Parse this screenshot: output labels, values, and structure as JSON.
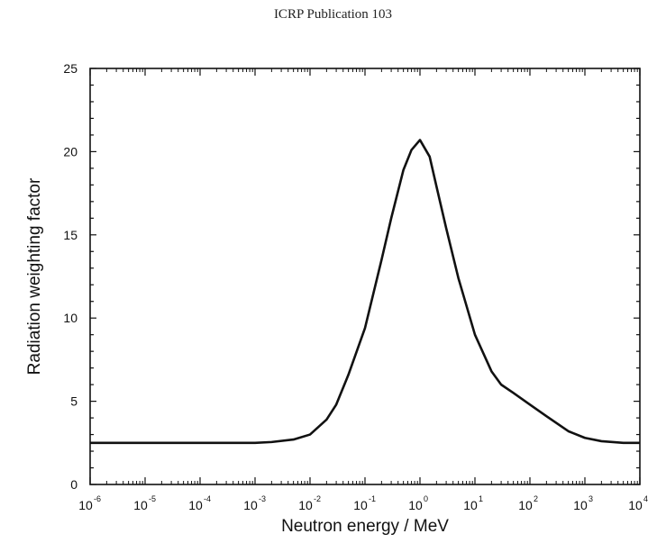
{
  "header": {
    "title": "ICRP Publication 103"
  },
  "chart_data": {
    "type": "line",
    "title": "",
    "xlabel": "Neutron energy / MeV",
    "ylabel": "Radiation weighting factor",
    "x_scale": "log",
    "xlim": [
      1e-06,
      10000.0
    ],
    "ylim": [
      0,
      25
    ],
    "y_ticks": [
      0,
      5,
      10,
      15,
      20,
      25
    ],
    "x_ticks": [
      {
        "value": 1e-06,
        "base": "10",
        "exp": "-6"
      },
      {
        "value": 1e-05,
        "base": "10",
        "exp": "-5"
      },
      {
        "value": 0.0001,
        "base": "10",
        "exp": "-4"
      },
      {
        "value": 0.001,
        "base": "10",
        "exp": "-3"
      },
      {
        "value": 0.01,
        "base": "10",
        "exp": "-2"
      },
      {
        "value": 0.1,
        "base": "10",
        "exp": "-1"
      },
      {
        "value": 1.0,
        "base": "10",
        "exp": "0"
      },
      {
        "value": 10.0,
        "base": "10",
        "exp": "1"
      },
      {
        "value": 100.0,
        "base": "10",
        "exp": "2"
      },
      {
        "value": 1000.0,
        "base": "10",
        "exp": "3"
      },
      {
        "value": 10000.0,
        "base": "10",
        "exp": "4"
      }
    ],
    "grid": false,
    "line_color": "#111111",
    "series": [
      {
        "x": [
          1e-06,
          1e-05,
          0.0001,
          0.001,
          0.002,
          0.005,
          0.01,
          0.02,
          0.03,
          0.05,
          0.1,
          0.2,
          0.3,
          0.5,
          0.7,
          1.0,
          1.5,
          2,
          3,
          5,
          10,
          20,
          30,
          50,
          100,
          200,
          500,
          1000,
          2000,
          5000,
          10000
        ],
        "y": [
          2.5,
          2.5,
          2.5,
          2.5,
          2.55,
          2.7,
          3.0,
          3.9,
          4.8,
          6.6,
          9.4,
          13.5,
          16.0,
          18.9,
          20.1,
          20.7,
          19.7,
          17.9,
          15.4,
          12.4,
          9.0,
          6.8,
          6.0,
          5.5,
          4.8,
          4.1,
          3.2,
          2.8,
          2.6,
          2.5,
          2.5
        ]
      }
    ]
  }
}
